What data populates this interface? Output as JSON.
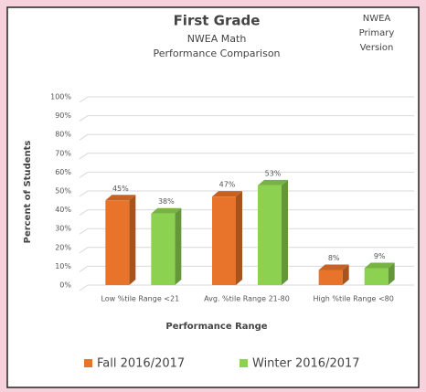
{
  "chart_data": {
    "type": "bar3d",
    "title": "First Grade",
    "subtitle": [
      "NWEA Math",
      "Performance Comparison"
    ],
    "corner_note": [
      "NWEA",
      "Primary",
      "Version"
    ],
    "ylabel": "Percent of Students",
    "xlabel": "Performance Range",
    "categories": [
      "Low %tile Range <21",
      "Avg. %tile Range 21-80",
      "High %tile Range <80"
    ],
    "series": [
      {
        "name": "Fall 2016/2017",
        "color": "#e8732a",
        "values": [
          45,
          47,
          8
        ],
        "value_labels": [
          "45%",
          "47%",
          "8%"
        ]
      },
      {
        "name": "Winter 2016/2017",
        "color": "#8cd14f",
        "values": [
          38,
          53,
          9
        ],
        "value_labels": [
          "38%",
          "53%",
          "9%"
        ]
      }
    ],
    "ylim": [
      0,
      100
    ],
    "yticks": [
      {
        "value": 0,
        "label": "0%"
      },
      {
        "value": 10,
        "label": "10%"
      },
      {
        "value": 20,
        "label": "20%"
      },
      {
        "value": 30,
        "label": "30%"
      },
      {
        "value": 40,
        "label": "40%"
      },
      {
        "value": 50,
        "label": "50%"
      },
      {
        "value": 60,
        "label": "60%"
      },
      {
        "value": 70,
        "label": "70%"
      },
      {
        "value": 80,
        "label": "80%"
      },
      {
        "value": 90,
        "label": "90%"
      },
      {
        "value": 100,
        "label": "100%"
      }
    ],
    "grid": true,
    "legend": "bottom"
  }
}
